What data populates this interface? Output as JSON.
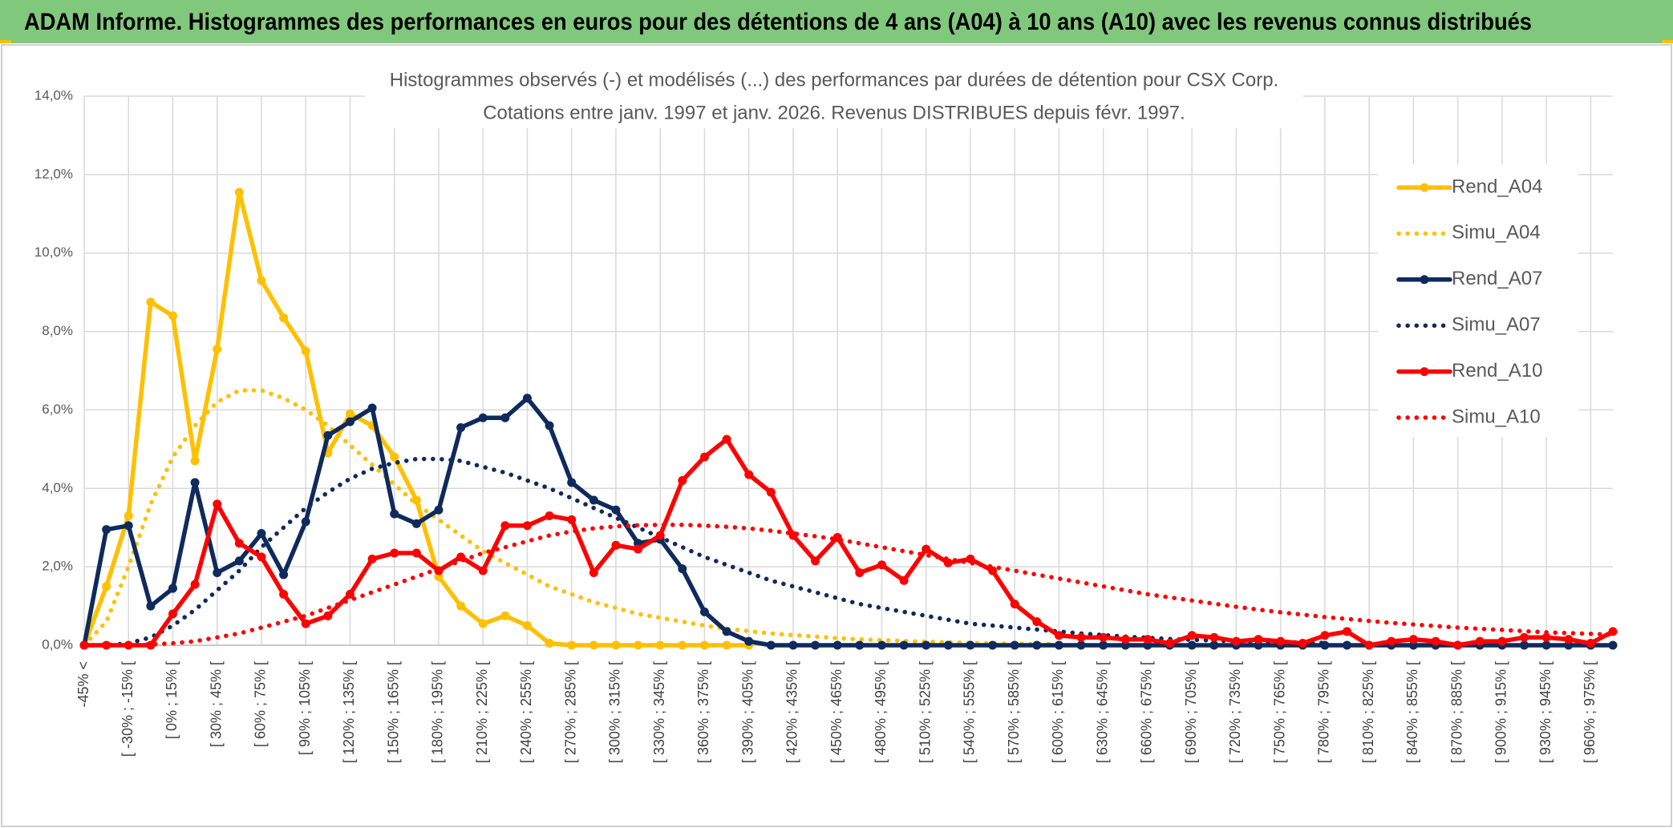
{
  "header": {
    "title": "ADAM Informe. Histogrammes des performances en euros pour des détentions de 4 ans (A04) à 10 ans (A10) avec les revenus connus distribués"
  },
  "chart_data": {
    "type": "line",
    "title": "Histogrammes observés (-) et modélisés (...) des performances par durées de détention pour CSX Corp.",
    "subtitle": "Cotations entre janv. 1997 et janv. 2026. Revenus DISTRIBUES depuis févr. 1997.",
    "categories": [
      "-45% <",
      null,
      "[ -30% ; -15% [",
      null,
      "[ 0% ; 15% [",
      null,
      "[ 30% ; 45% [",
      null,
      "[ 60% ; 75% [",
      null,
      "[ 90% ; 105% [",
      null,
      "[ 120% ; 135% [",
      null,
      "[ 150% ; 165% [",
      null,
      "[ 180% ; 195% [",
      null,
      "[ 210% ; 225% [",
      null,
      "[ 240% ; 255% [",
      null,
      "[ 270% ; 285% [",
      null,
      "[ 300% ; 315% [",
      null,
      "[ 330% ; 345% [",
      null,
      "[ 360% ; 375% [",
      null,
      "[ 390% ; 405% [",
      null,
      "[ 420% ; 435% [",
      null,
      "[ 450% ; 465% [",
      null,
      "[ 480% ; 495% [",
      null,
      "[ 510% ; 525% [",
      null,
      "[ 540% ; 555% [",
      null,
      "[ 570% ; 585% [",
      null,
      "[ 600% ; 615% [",
      null,
      "[ 630% ; 645% [",
      null,
      "[ 660% ; 675% [",
      null,
      "[ 690% ; 705% [",
      null,
      "[ 720% ; 735% [",
      null,
      "[ 750% ; 765% [",
      null,
      "[ 780% ; 795% [",
      null,
      "[ 810% ; 825% [",
      null,
      "[ 840% ; 855% [",
      null,
      "[ 870% ; 885% [",
      null,
      "[ 900% ; 915% [",
      null,
      "[ 930% ; 945% [",
      null,
      "[ 960% ; 975% [",
      null
    ],
    "series": [
      {
        "name": "Rend_A04",
        "color": "#ffc000",
        "style": "solid",
        "values": [
          0.0,
          1.5,
          3.3,
          8.75,
          8.4,
          4.7,
          7.55,
          11.55,
          9.3,
          8.35,
          7.5,
          4.9,
          5.9,
          5.6,
          4.8,
          3.7,
          1.75,
          1.0,
          0.55,
          0.75,
          0.5,
          0.05,
          0.0,
          0.0,
          0.0,
          0.0,
          0.0,
          0.0,
          0.0,
          0.0,
          0.0,
          null,
          null,
          null,
          null,
          null,
          null,
          null,
          null,
          null,
          null,
          null,
          null,
          null,
          null,
          null,
          null,
          null,
          null,
          null,
          null,
          null,
          null,
          null,
          null,
          null,
          null,
          null,
          null,
          null,
          null,
          null,
          null,
          null,
          null,
          null,
          null,
          null,
          null,
          null
        ]
      },
      {
        "name": "Simu_A04",
        "color": "#ffc000",
        "style": "dotted",
        "values": [
          0.0,
          0.6,
          2.0,
          3.6,
          4.8,
          5.6,
          6.2,
          6.5,
          6.5,
          6.3,
          6.0,
          5.6,
          5.1,
          4.6,
          4.1,
          3.6,
          3.2,
          2.8,
          2.4,
          2.1,
          1.8,
          1.5,
          1.3,
          1.1,
          0.95,
          0.8,
          0.7,
          0.6,
          0.5,
          0.42,
          0.36,
          0.3,
          0.26,
          0.22,
          0.18,
          0.15,
          0.13,
          0.11,
          0.09,
          0.08,
          0.06,
          0.05,
          0.04,
          0.03,
          0.03,
          null,
          null,
          null,
          null,
          null,
          null,
          null,
          null,
          null,
          null,
          null,
          null,
          null,
          null,
          null,
          null,
          null,
          null,
          null,
          null,
          null,
          null,
          null,
          null,
          null
        ]
      },
      {
        "name": "Rend_A07",
        "color": "#0f2a5c",
        "style": "solid",
        "values": [
          0.0,
          2.95,
          3.05,
          1.0,
          1.45,
          4.15,
          1.85,
          2.15,
          2.85,
          1.8,
          3.15,
          5.35,
          5.7,
          6.05,
          3.35,
          3.1,
          3.45,
          5.55,
          5.8,
          5.8,
          6.3,
          5.6,
          4.15,
          3.7,
          3.45,
          2.6,
          2.7,
          1.95,
          0.85,
          0.35,
          0.1,
          0.0,
          0.0,
          0.0,
          0.0,
          0.0,
          0.0,
          0.0,
          0.0,
          0.0,
          0.0,
          0.0,
          0.0,
          0.0,
          0.0,
          0.0,
          0.0,
          0.0,
          0.0,
          0.0,
          0.0,
          0.0,
          0.0,
          0.0,
          0.0,
          0.0,
          0.0,
          0.0,
          0.0,
          0.0,
          0.0,
          0.0,
          0.0,
          0.0,
          0.0,
          0.0,
          0.0,
          0.0,
          0.0,
          0.0
        ]
      },
      {
        "name": "Simu_A07",
        "color": "#0f2a5c",
        "style": "dotted",
        "values": [
          0.0,
          0.0,
          0.05,
          0.2,
          0.5,
          0.9,
          1.4,
          1.9,
          2.5,
          3.0,
          3.5,
          3.9,
          4.25,
          4.5,
          4.65,
          4.75,
          4.75,
          4.7,
          4.55,
          4.4,
          4.2,
          4.0,
          3.75,
          3.5,
          3.25,
          3.0,
          2.75,
          2.5,
          2.25,
          2.05,
          1.85,
          1.65,
          1.5,
          1.35,
          1.2,
          1.05,
          0.95,
          0.85,
          0.75,
          0.65,
          0.55,
          0.5,
          0.45,
          0.4,
          0.35,
          0.3,
          0.26,
          0.22,
          0.19,
          0.16,
          0.14,
          0.12,
          0.1,
          0.09,
          0.08,
          0.07,
          0.06,
          null,
          null,
          null,
          null,
          null,
          null,
          null,
          null,
          null,
          null,
          null,
          null,
          null
        ]
      },
      {
        "name": "Rend_A10",
        "color": "#ff0000",
        "style": "solid",
        "values": [
          0.0,
          0.0,
          0.0,
          0.0,
          0.8,
          1.55,
          3.6,
          2.6,
          2.25,
          1.3,
          0.55,
          0.75,
          1.3,
          2.2,
          2.35,
          2.35,
          1.9,
          2.25,
          1.9,
          3.05,
          3.05,
          3.3,
          3.2,
          1.85,
          2.55,
          2.45,
          2.8,
          4.2,
          4.8,
          5.25,
          4.35,
          3.9,
          2.8,
          2.15,
          2.75,
          1.85,
          2.05,
          1.65,
          2.45,
          2.1,
          2.2,
          1.9,
          1.05,
          0.6,
          0.25,
          0.2,
          0.2,
          0.15,
          0.15,
          0.05,
          0.25,
          0.2,
          0.1,
          0.15,
          0.1,
          0.05,
          0.25,
          0.35,
          0.0,
          0.1,
          0.15,
          0.1,
          0.0,
          0.1,
          0.1,
          0.2,
          0.2,
          0.15,
          0.05,
          0.35
        ]
      },
      {
        "name": "Simu_A10",
        "color": "#ff0000",
        "style": "dotted",
        "values": [
          0.0,
          0.0,
          0.0,
          0.02,
          0.05,
          0.1,
          0.2,
          0.3,
          0.45,
          0.6,
          0.75,
          0.95,
          1.15,
          1.35,
          1.55,
          1.75,
          1.95,
          2.15,
          2.35,
          2.5,
          2.65,
          2.8,
          2.9,
          2.98,
          3.03,
          3.06,
          3.07,
          3.07,
          3.05,
          3.02,
          2.98,
          2.92,
          2.85,
          2.78,
          2.7,
          2.6,
          2.5,
          2.4,
          2.3,
          2.2,
          2.1,
          2.0,
          1.9,
          1.8,
          1.7,
          1.6,
          1.5,
          1.4,
          1.3,
          1.22,
          1.14,
          1.06,
          0.98,
          0.91,
          0.84,
          0.78,
          0.72,
          0.67,
          0.62,
          0.57,
          0.53,
          0.49,
          0.45,
          0.42,
          0.39,
          0.36,
          0.33,
          0.31,
          0.29,
          0.27
        ]
      }
    ],
    "ylim": [
      0,
      14
    ],
    "yticks": [
      {
        "value": 0,
        "label": "0,0%"
      },
      {
        "value": 2,
        "label": "2,0%"
      },
      {
        "value": 4,
        "label": "4,0%"
      },
      {
        "value": 6,
        "label": "6,0%"
      },
      {
        "value": 8,
        "label": "8,0%"
      },
      {
        "value": 10,
        "label": "10,0%"
      },
      {
        "value": 12,
        "label": "12,0%"
      },
      {
        "value": 14,
        "label": "14,0%"
      }
    ],
    "grid": true,
    "legend": "right"
  }
}
